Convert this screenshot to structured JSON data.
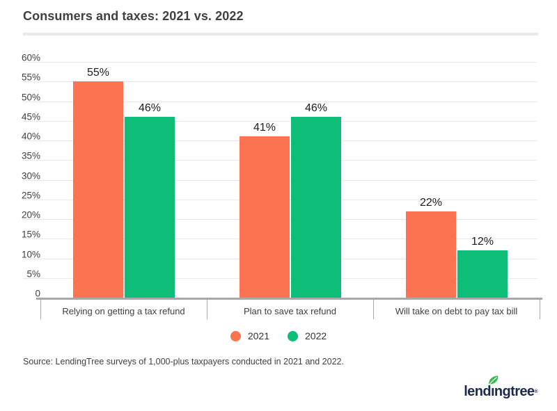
{
  "page": {
    "title": "Consumers and taxes: 2021 vs. 2022",
    "source": "Source: LendingTree surveys of 1,000-plus taxpayers conducted in 2021 and 2022."
  },
  "logo": {
    "brand": "lendingtree",
    "part1": "lend",
    "dotless_i": "ı",
    "part2": "ngtree",
    "registered": "®",
    "navy": "#1C2B4A",
    "leaf_green": "#3DBB57"
  },
  "chart_data": {
    "type": "bar",
    "title": "Consumers and taxes: 2021 vs. 2022",
    "categories": [
      "Relying on getting a tax refund",
      "Plan to save tax refund",
      "Will take on debt to pay tax bill"
    ],
    "series": [
      {
        "name": "2021",
        "color": "#FB7350",
        "values": [
          55,
          41,
          22
        ]
      },
      {
        "name": "2022",
        "color": "#0DBD78",
        "values": [
          46,
          46,
          12
        ]
      }
    ],
    "value_suffix": "%",
    "ylabel": "",
    "xlabel": "",
    "ylim": [
      0,
      60
    ],
    "ytick_step": 5,
    "ytick_labels": [
      "0",
      "5%",
      "10%",
      "15%",
      "20%",
      "25%",
      "30%",
      "35%",
      "40%",
      "45%",
      "50%",
      "55%",
      "60%"
    ],
    "grid": true,
    "gridline_color": "#E9E9E9",
    "axis_color": "#A8A8A8",
    "legend_position": "bottom"
  }
}
